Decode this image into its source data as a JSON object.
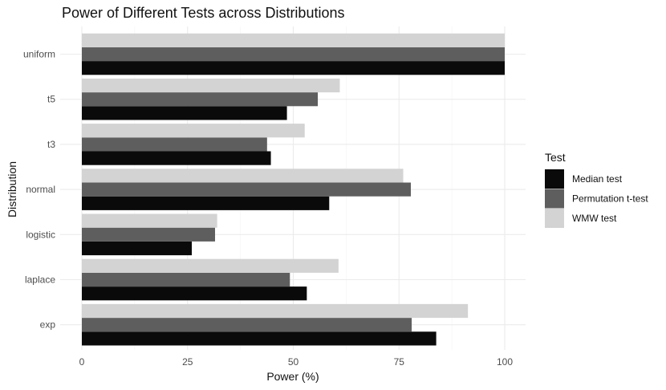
{
  "chart_data": {
    "type": "bar",
    "orientation": "horizontal",
    "title": "Power of Different Tests across Distributions",
    "xlabel": "Power (%)",
    "ylabel": "Distribution",
    "xlim": [
      0,
      105
    ],
    "x_ticks": [
      0,
      25,
      50,
      75,
      100
    ],
    "grid": true,
    "legend_position": "right",
    "legend_title": "Test",
    "categories": [
      "uniform",
      "t5",
      "t3",
      "normal",
      "logistic",
      "laplace",
      "exp"
    ],
    "series": [
      {
        "name": "Median test",
        "color": "#0a0a0a",
        "values": [
          100,
          48.5,
          44.7,
          58.5,
          26,
          53.2,
          83.8
        ]
      },
      {
        "name": "Permutation t-test",
        "color": "#5e5e5e",
        "values": [
          100,
          55.8,
          43.8,
          77.8,
          31.5,
          49.2,
          78
        ]
      },
      {
        "name": "WMW test",
        "color": "#d3d3d3",
        "values": [
          100,
          61,
          52.7,
          76,
          32,
          60.7,
          91.3
        ]
      }
    ]
  }
}
